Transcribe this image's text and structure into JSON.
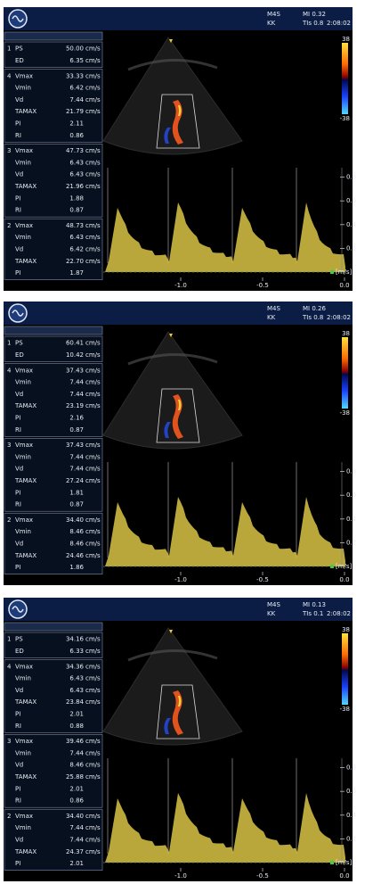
{
  "panels": [
    {
      "header": {
        "probe": "M4S",
        "user": "KK",
        "mi": "MI 0.32",
        "tis": "TIs 0.8",
        "time": "2:08:02"
      },
      "groups": [
        {
          "index": "1",
          "rows": [
            {
              "label": "PS",
              "value": "50.00",
              "unit": "cm/s"
            },
            {
              "label": "ED",
              "value": "6.35",
              "unit": "cm/s"
            }
          ]
        },
        {
          "index": "4",
          "rows": [
            {
              "label": "Vmax",
              "value": "33.33",
              "unit": "cm/s"
            },
            {
              "label": "Vmin",
              "value": "6.42",
              "unit": "cm/s"
            },
            {
              "label": "Vd",
              "value": "7.44",
              "unit": "cm/s"
            },
            {
              "label": "TAMAX",
              "value": "21.79",
              "unit": "cm/s"
            },
            {
              "label": "PI",
              "value": "2.11"
            },
            {
              "label": "RI",
              "value": "0.86"
            }
          ]
        },
        {
          "index": "3",
          "rows": [
            {
              "label": "Vmax",
              "value": "47.73",
              "unit": "cm/s"
            },
            {
              "label": "Vmin",
              "value": "6.43",
              "unit": "cm/s"
            },
            {
              "label": "Vd",
              "value": "6.43",
              "unit": "cm/s"
            },
            {
              "label": "TAMAX",
              "value": "21.96",
              "unit": "cm/s"
            },
            {
              "label": "PI",
              "value": "1.88"
            },
            {
              "label": "RI",
              "value": "0.87"
            }
          ]
        },
        {
          "index": "2",
          "rows": [
            {
              "label": "Vmax",
              "value": "48.73",
              "unit": "cm/s"
            },
            {
              "label": "Vmin",
              "value": "6.43",
              "unit": "cm/s"
            },
            {
              "label": "Vd",
              "value": "6.42",
              "unit": "cm/s"
            },
            {
              "label": "TAMAX",
              "value": "22.70",
              "unit": "cm/s"
            },
            {
              "label": "PI",
              "value": "1.87"
            }
          ]
        }
      ],
      "color_scale": {
        "top": "38",
        "bottom": "-38"
      },
      "velocity_ticks": [
        0.8,
        0.6,
        0.4,
        0.2
      ],
      "velocity_unit": "[m/s]",
      "time_ticks": [
        {
          "value": -1,
          "label": "-1.0"
        },
        -0.5,
        {
          "value": 0,
          "label": "0.0"
        }
      ]
    },
    {
      "header": {
        "probe": "M4S",
        "user": "KK",
        "mi": "MI 0.26",
        "tis": "TIs 0.8",
        "time": "2:08:02"
      },
      "groups": [
        {
          "index": "1",
          "rows": [
            {
              "label": "PS",
              "value": "60.41",
              "unit": "cm/s"
            },
            {
              "label": "ED",
              "value": "10.42",
              "unit": "cm/s"
            }
          ]
        },
        {
          "index": "4",
          "rows": [
            {
              "label": "Vmax",
              "value": "37.43",
              "unit": "cm/s"
            },
            {
              "label": "Vmin",
              "value": "7.44",
              "unit": "cm/s"
            },
            {
              "label": "Vd",
              "value": "7.44",
              "unit": "cm/s"
            },
            {
              "label": "TAMAX",
              "value": "23.19",
              "unit": "cm/s"
            },
            {
              "label": "PI",
              "value": "2.16"
            },
            {
              "label": "RI",
              "value": "0.87"
            }
          ]
        },
        {
          "index": "3",
          "rows": [
            {
              "label": "Vmax",
              "value": "37.43",
              "unit": "cm/s"
            },
            {
              "label": "Vmin",
              "value": "7.44",
              "unit": "cm/s"
            },
            {
              "label": "Vd",
              "value": "7.44",
              "unit": "cm/s"
            },
            {
              "label": "TAMAX",
              "value": "27.24",
              "unit": "cm/s"
            },
            {
              "label": "PI",
              "value": "1.81"
            },
            {
              "label": "RI",
              "value": "0.87"
            }
          ]
        },
        {
          "index": "2",
          "rows": [
            {
              "label": "Vmax",
              "value": "34.40",
              "unit": "cm/s"
            },
            {
              "label": "Vmin",
              "value": "8.46",
              "unit": "cm/s"
            },
            {
              "label": "Vd",
              "value": "8.46",
              "unit": "cm/s"
            },
            {
              "label": "TAMAX",
              "value": "24.46",
              "unit": "cm/s"
            },
            {
              "label": "PI",
              "value": "1.86"
            }
          ]
        }
      ],
      "color_scale": {
        "top": "38",
        "bottom": "-38"
      },
      "velocity_ticks": [
        0.8,
        0.6,
        0.4,
        0.2
      ],
      "velocity_unit": "[m/s]",
      "time_ticks": [
        {
          "value": -1,
          "label": "-1.0"
        },
        -0.5,
        {
          "value": 0,
          "label": "0.0"
        }
      ]
    },
    {
      "header": {
        "probe": "M4S",
        "user": "KK",
        "mi": "MI 0.13",
        "tis": "TIs 0.1",
        "time": "2:08:02"
      },
      "groups": [
        {
          "index": "1",
          "rows": [
            {
              "label": "PS",
              "value": "34.16",
              "unit": "cm/s"
            },
            {
              "label": "ED",
              "value": "6.33",
              "unit": "cm/s"
            }
          ]
        },
        {
          "index": "4",
          "rows": [
            {
              "label": "Vmax",
              "value": "34.36",
              "unit": "cm/s"
            },
            {
              "label": "Vmin",
              "value": "6.43",
              "unit": "cm/s"
            },
            {
              "label": "Vd",
              "value": "6.43",
              "unit": "cm/s"
            },
            {
              "label": "TAMAX",
              "value": "23.84",
              "unit": "cm/s"
            },
            {
              "label": "PI",
              "value": "2.01"
            },
            {
              "label": "RI",
              "value": "0.88"
            }
          ]
        },
        {
          "index": "3",
          "rows": [
            {
              "label": "Vmax",
              "value": "39.46",
              "unit": "cm/s"
            },
            {
              "label": "Vmin",
              "value": "7.44",
              "unit": "cm/s"
            },
            {
              "label": "Vd",
              "value": "8.46",
              "unit": "cm/s"
            },
            {
              "label": "TAMAX",
              "value": "25.88",
              "unit": "cm/s"
            },
            {
              "label": "PI",
              "value": "2.01"
            },
            {
              "label": "RI",
              "value": "0.86"
            }
          ]
        },
        {
          "index": "2",
          "rows": [
            {
              "label": "Vmax",
              "value": "34.40",
              "unit": "cm/s"
            },
            {
              "label": "Vmin",
              "value": "7.44",
              "unit": "cm/s"
            },
            {
              "label": "Vd",
              "value": "7.44",
              "unit": "cm/s"
            },
            {
              "label": "TAMAX",
              "value": "24.37",
              "unit": "cm/s"
            },
            {
              "label": "PI",
              "value": "2.01"
            }
          ]
        }
      ],
      "color_scale": {
        "top": "38",
        "bottom": "-38"
      },
      "velocity_ticks": [
        0.8,
        0.6,
        0.4,
        0.2
      ],
      "velocity_unit": "[m/s]",
      "time_ticks": [
        {
          "value": -1,
          "label": "-1.0"
        },
        -0.5,
        {
          "value": 0,
          "label": "0.0"
        }
      ]
    }
  ]
}
